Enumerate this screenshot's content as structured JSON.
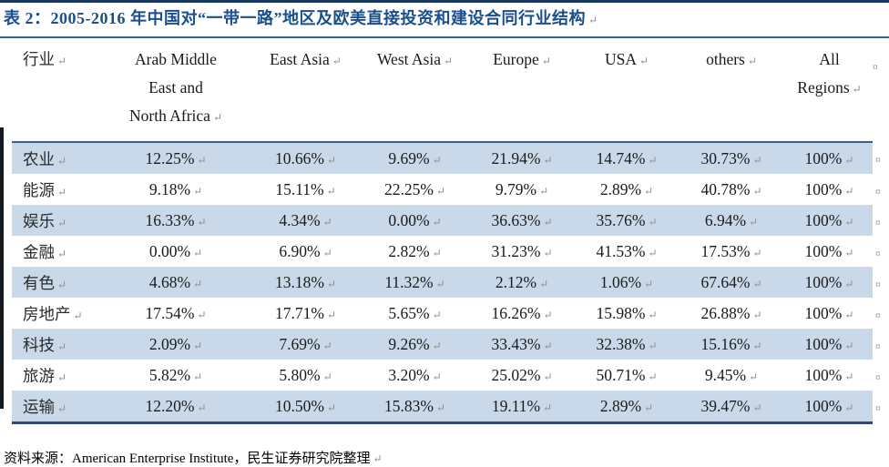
{
  "title": "表 2：2005-2016 年中国对“一带一路”地区及欧美直接投资和建设合同行业结构",
  "paragraph_mark": "↵",
  "row_end_mark": "¤",
  "colors": {
    "top_rule_navy": "#17375E",
    "rule_steel_blue": "#2E6394",
    "bottom_rule_blue": "#2B4590",
    "band_light_blue": "#C9D9E9",
    "title_blue": "#1B4F8C"
  },
  "table": {
    "headers": [
      {
        "label": "行业",
        "lines": [
          "行业"
        ]
      },
      {
        "label": "Arab Middle East and North Africa",
        "lines": [
          "Arab Middle",
          "East and",
          "North Africa"
        ]
      },
      {
        "label": "East Asia",
        "lines": [
          "East Asia"
        ]
      },
      {
        "label": "West Asia",
        "lines": [
          "West Asia"
        ]
      },
      {
        "label": "Europe",
        "lines": [
          "Europe"
        ]
      },
      {
        "label": "USA",
        "lines": [
          "USA"
        ]
      },
      {
        "label": "others",
        "lines": [
          "others"
        ]
      },
      {
        "label": "All Regions",
        "lines": [
          "All",
          "Regions"
        ]
      }
    ],
    "rows": [
      {
        "label": "农业",
        "values": [
          "12.25%",
          "10.66%",
          "9.69%",
          "21.94%",
          "14.74%",
          "30.73%",
          "100%"
        ]
      },
      {
        "label": "能源",
        "values": [
          "9.18%",
          "15.11%",
          "22.25%",
          "9.79%",
          "2.89%",
          "40.78%",
          "100%"
        ]
      },
      {
        "label": "娱乐",
        "values": [
          "16.33%",
          "4.34%",
          "0.00%",
          "36.63%",
          "35.76%",
          "6.94%",
          "100%"
        ]
      },
      {
        "label": "金融",
        "values": [
          "0.00%",
          "6.90%",
          "2.82%",
          "31.23%",
          "41.53%",
          "17.53%",
          "100%"
        ]
      },
      {
        "label": "有色",
        "values": [
          "4.68%",
          "13.18%",
          "11.32%",
          "2.12%",
          "1.06%",
          "67.64%",
          "100%"
        ]
      },
      {
        "label": "房地产",
        "values": [
          "17.54%",
          "17.71%",
          "5.65%",
          "16.26%",
          "15.98%",
          "26.88%",
          "100%"
        ]
      },
      {
        "label": "科技",
        "values": [
          "2.09%",
          "7.69%",
          "9.26%",
          "33.43%",
          "32.38%",
          "15.16%",
          "100%"
        ]
      },
      {
        "label": "旅游",
        "values": [
          "5.82%",
          "5.80%",
          "3.20%",
          "25.02%",
          "50.71%",
          "9.45%",
          "100%"
        ]
      },
      {
        "label": "运输",
        "values": [
          "12.20%",
          "10.50%",
          "15.83%",
          "19.11%",
          "2.89%",
          "39.47%",
          "100%"
        ]
      }
    ]
  },
  "footer": "资料来源：American Enterprise Institute，民生证券研究院整理"
}
